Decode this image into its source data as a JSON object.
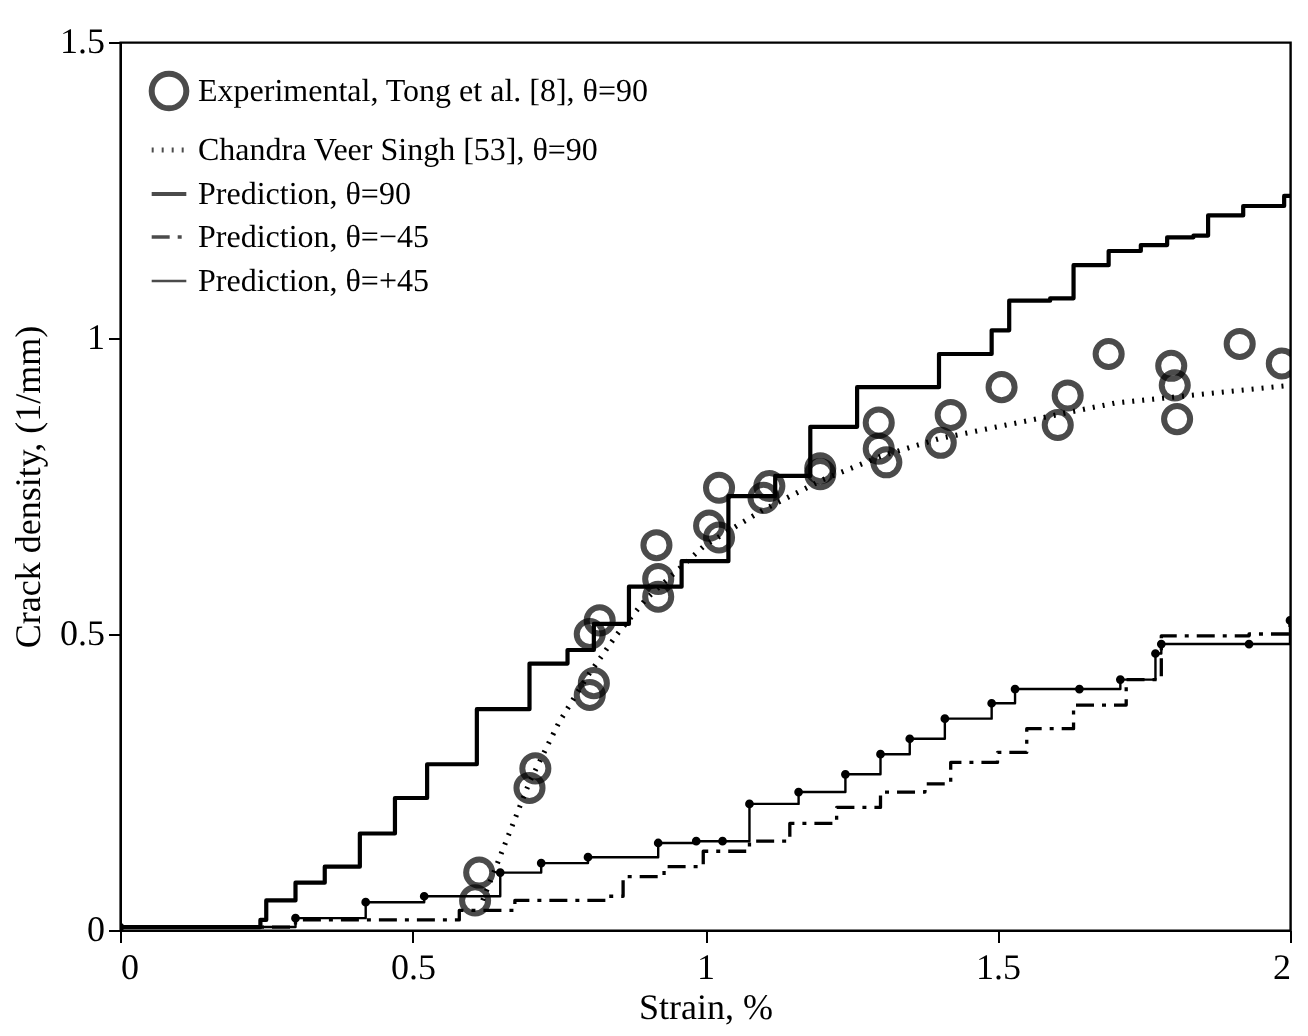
{
  "chart_data": {
    "type": "line",
    "xlabel": "Strain, %",
    "ylabel": "Crack density, (1/mm)",
    "xlim": [
      0,
      2
    ],
    "ylim": [
      0,
      1.5
    ],
    "xticks": [
      0,
      0.5,
      1,
      1.5,
      2
    ],
    "yticks": [
      0,
      0.5,
      1,
      1.5
    ],
    "grid": false,
    "legend": "top left",
    "series": [
      {
        "name": "Experimental, Tong et al. [8], θ=90",
        "type": "scatter",
        "marker": "circle",
        "color": "#000000",
        "x": [
          0.607,
          0.614,
          0.7,
          0.71,
          0.803,
          0.81,
          0.803,
          0.82,
          0.92,
          0.92,
          0.917,
          1.007,
          1.024,
          1.024,
          1.1,
          1.11,
          1.197,
          1.197,
          1.297,
          1.297,
          1.31,
          1.403,
          1.42,
          1.507,
          1.603,
          1.62,
          1.69,
          1.797,
          1.803,
          1.807,
          1.914,
          1.986
        ],
        "values": [
          0.05,
          0.097,
          0.24,
          0.273,
          0.397,
          0.417,
          0.5,
          0.523,
          0.563,
          0.593,
          0.65,
          0.683,
          0.663,
          0.747,
          0.73,
          0.75,
          0.77,
          0.78,
          0.813,
          0.857,
          0.79,
          0.823,
          0.87,
          0.917,
          0.853,
          0.903,
          0.973,
          0.953,
          0.92,
          0.863,
          0.99,
          0.957
        ]
      },
      {
        "name": "Chandra Veer Singh [53], θ=90",
        "line_style": "dotted",
        "marker": "none",
        "color": "#000000",
        "x": [
          0.62,
          0.66,
          0.7,
          0.75,
          0.8,
          0.85,
          0.9,
          1.0,
          1.1,
          1.2,
          1.3,
          1.4,
          1.5,
          1.6,
          1.7,
          1.8,
          1.9,
          2.0
        ],
        "values": [
          0.05,
          0.15,
          0.25,
          0.35,
          0.43,
          0.5,
          0.56,
          0.65,
          0.71,
          0.76,
          0.8,
          0.83,
          0.85,
          0.87,
          0.89,
          0.9,
          0.91,
          0.92
        ]
      },
      {
        "name": "Prediction, θ=90",
        "type": "step",
        "line_style": "solid",
        "marker": "none",
        "color": "#000000",
        "x": [
          0,
          0.2,
          0.24,
          0.25,
          0.3,
          0.35,
          0.41,
          0.47,
          0.525,
          0.61,
          0.7,
          0.765,
          0.81,
          0.87,
          0.96,
          1.04,
          1.12,
          1.18,
          1.26,
          1.35,
          1.4,
          1.49,
          1.52,
          1.59,
          1.63,
          1.675,
          1.69,
          1.745,
          1.79,
          1.835,
          1.86,
          1.92,
          1.99,
          2.0
        ],
        "values": [
          0.005,
          0.005,
          0.017,
          0.05,
          0.08,
          0.107,
          0.163,
          0.223,
          0.28,
          0.373,
          0.45,
          0.473,
          0.517,
          0.58,
          0.623,
          0.733,
          0.767,
          0.85,
          0.917,
          0.917,
          0.973,
          1.013,
          1.063,
          1.067,
          1.123,
          1.123,
          1.147,
          1.157,
          1.17,
          1.173,
          1.207,
          1.223,
          1.24,
          1.24
        ]
      },
      {
        "name": "Prediction, θ=−45",
        "type": "step",
        "line_style": "dashed",
        "marker": "none",
        "color": "#000000",
        "x": [
          0,
          0.3,
          0.58,
          0.675,
          0.835,
          0.86,
          0.93,
          0.997,
          1.076,
          1.145,
          1.225,
          1.3,
          1.376,
          1.42,
          1.5,
          1.55,
          1.63,
          1.72,
          1.78,
          1.93,
          2.0
        ],
        "values": [
          0.005,
          0.017,
          0.033,
          0.05,
          0.057,
          0.09,
          0.107,
          0.133,
          0.15,
          0.18,
          0.207,
          0.233,
          0.247,
          0.283,
          0.3,
          0.34,
          0.38,
          0.423,
          0.497,
          0.5,
          0.523
        ]
      },
      {
        "name": "Prediction, θ=+45",
        "type": "step",
        "line_style": "solid",
        "marker": "circle",
        "color": "#000000",
        "x": [
          0,
          0.3,
          0.42,
          0.52,
          0.65,
          0.72,
          0.8,
          0.92,
          0.985,
          1.03,
          1.076,
          1.16,
          1.24,
          1.3,
          1.35,
          1.41,
          1.49,
          1.53,
          1.64,
          1.71,
          1.77,
          1.78,
          1.93,
          2.0
        ],
        "values": [
          0.005,
          0.02,
          0.047,
          0.057,
          0.097,
          0.113,
          0.123,
          0.147,
          0.15,
          0.15,
          0.213,
          0.233,
          0.263,
          0.297,
          0.323,
          0.357,
          0.383,
          0.407,
          0.407,
          0.423,
          0.467,
          0.483,
          0.483,
          0.523
        ]
      }
    ]
  }
}
